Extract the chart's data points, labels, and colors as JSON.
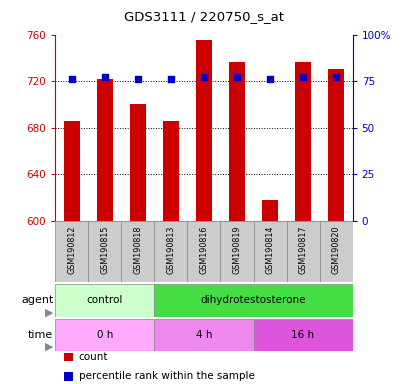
{
  "title": "GDS3111 / 220750_s_at",
  "samples": [
    "GSM190812",
    "GSM190815",
    "GSM190818",
    "GSM190813",
    "GSM190816",
    "GSM190819",
    "GSM190814",
    "GSM190817",
    "GSM190820"
  ],
  "counts": [
    686,
    722,
    700,
    686,
    755,
    736,
    618,
    736,
    730
  ],
  "percentile_ranks": [
    76,
    77,
    76,
    76,
    77,
    77,
    76,
    77,
    77
  ],
  "ylim_left": [
    600,
    760
  ],
  "ylim_right": [
    0,
    100
  ],
  "yticks_left": [
    600,
    640,
    680,
    720,
    760
  ],
  "yticks_right": [
    0,
    25,
    50,
    75,
    100
  ],
  "ytick_labels_right": [
    "0",
    "25",
    "50",
    "75",
    "100%"
  ],
  "bar_color": "#cc0000",
  "dot_color": "#0000cc",
  "bar_width": 0.5,
  "agent_groups": [
    {
      "label": "control",
      "start": 0,
      "end": 3,
      "color": "#ccffcc"
    },
    {
      "label": "dihydrotestosterone",
      "start": 3,
      "end": 9,
      "color": "#44dd44"
    }
  ],
  "time_groups": [
    {
      "label": "0 h",
      "start": 0,
      "end": 3,
      "color": "#ffaaff"
    },
    {
      "label": "4 h",
      "start": 3,
      "end": 6,
      "color": "#ee88ee"
    },
    {
      "label": "16 h",
      "start": 6,
      "end": 9,
      "color": "#dd55dd"
    }
  ],
  "legend_items": [
    {
      "color": "#cc0000",
      "label": "count"
    },
    {
      "color": "#0000cc",
      "label": "percentile rank within the sample"
    }
  ],
  "background_color": "#ffffff",
  "plot_bg": "#ffffff",
  "left_axis_color": "#cc0000",
  "right_axis_color": "#0000bb",
  "sample_box_color": "#cccccc",
  "sample_box_edge": "#888888"
}
